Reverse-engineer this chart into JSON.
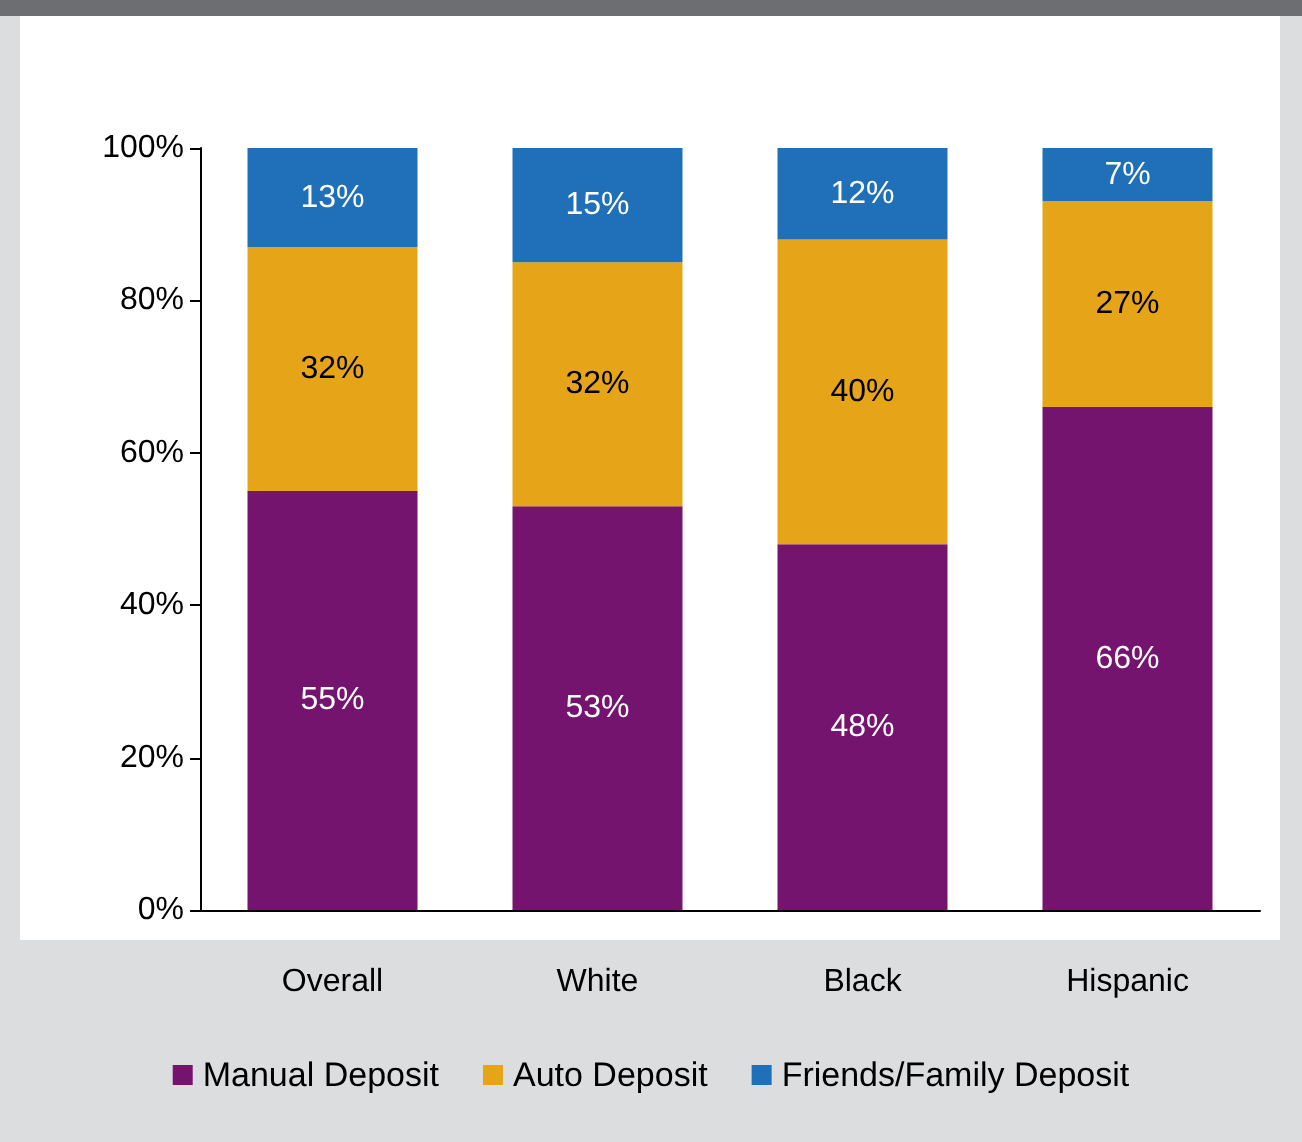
{
  "chart_data": {
    "type": "bar",
    "stacked": true,
    "categories": [
      "Overall",
      "White",
      "Black",
      "Hispanic"
    ],
    "series": [
      {
        "name": "Manual Deposit",
        "color": "#74146e",
        "values": [
          55,
          53,
          48,
          66
        ],
        "value_labels": [
          "55%",
          "53%",
          "48%",
          "66%"
        ]
      },
      {
        "name": "Auto Deposit",
        "color": "#e6a519",
        "values": [
          32,
          32,
          40,
          27
        ],
        "value_labels": [
          "32%",
          "32%",
          "40%",
          "27%"
        ]
      },
      {
        "name": "Friends/Family Deposit",
        "color": "#1f70b8",
        "values": [
          13,
          15,
          12,
          7
        ],
        "value_labels": [
          "13%",
          "15%",
          "12%",
          "7%"
        ]
      }
    ],
    "ylim": [
      0,
      100
    ],
    "yticks": [
      {
        "value": 0,
        "label": "0%"
      },
      {
        "value": 20,
        "label": "20%"
      },
      {
        "value": 40,
        "label": "40%"
      },
      {
        "value": 60,
        "label": "60%"
      },
      {
        "value": 80,
        "label": "80%"
      },
      {
        "value": 100,
        "label": "100%"
      }
    ],
    "grid": false,
    "legend": "bottom"
  }
}
